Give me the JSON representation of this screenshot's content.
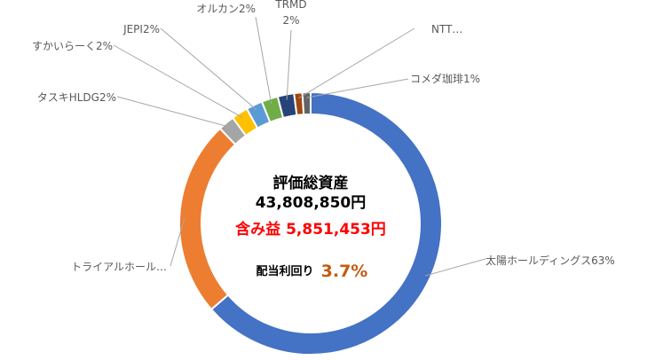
{
  "chart_data": {
    "type": "pie",
    "subtype": "doughnut",
    "slices": [
      {
        "label": "太陽ホールディングス",
        "display": "太陽ホールディングス63%",
        "value": 63,
        "color": "#4472c4"
      },
      {
        "label": "トライアルホール…",
        "display": "トライアルホール…",
        "value": 24,
        "color": "#ed7d31"
      },
      {
        "label": "タスキHLDG",
        "display": "タスキHLDG2%",
        "value": 2,
        "color": "#a5a5a5"
      },
      {
        "label": "すかいらーく",
        "display": "すかいらーく2%",
        "value": 2,
        "color": "#ffc000"
      },
      {
        "label": "JEPI",
        "display": "JEPI2%",
        "value": 2,
        "color": "#5b9bd5"
      },
      {
        "label": "オルカン",
        "display": "オルカン2%",
        "value": 2,
        "color": "#70ad47"
      },
      {
        "label": "TRMD",
        "display_lines": [
          "TRMD",
          "2%"
        ],
        "value": 2,
        "color": "#264478"
      },
      {
        "label": "NTT",
        "display": "NTT…",
        "value": 1,
        "color": "#9e480e"
      },
      {
        "label": "コメダ珈琲",
        "display": "コメダ珈琲1%",
        "value": 1,
        "color": "#636363"
      }
    ],
    "legend": "none"
  },
  "center": {
    "title": "評価総資産",
    "total": "43,808,850円",
    "gain": "含み益 5,851,453円",
    "yield_label": "配当利回り",
    "yield_value": "3.7%"
  }
}
